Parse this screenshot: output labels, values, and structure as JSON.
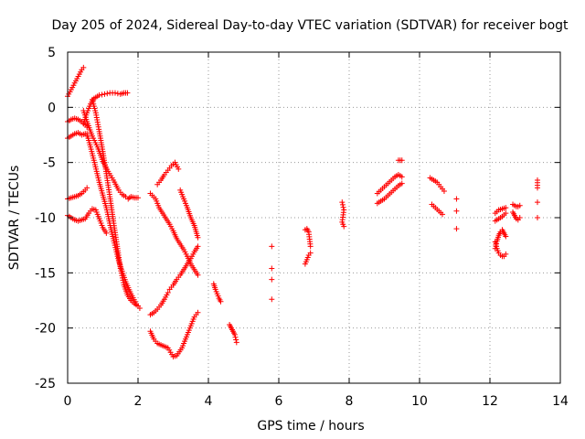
{
  "chart_data": {
    "type": "scatter",
    "title": "Day 205 of 2024, Sidereal Day-to-day VTEC variation (SDTVAR) for receiver bogt",
    "xlabel": "GPS time / hours",
    "ylabel": "SDTVAR / TECUs",
    "xlim": [
      0,
      14
    ],
    "ylim": [
      -25,
      5
    ],
    "xticks": [
      0,
      2,
      4,
      6,
      8,
      10,
      12,
      14
    ],
    "yticks": [
      -25,
      -20,
      -15,
      -10,
      -5,
      0,
      5
    ],
    "xtick_labels": [
      "0",
      "2",
      "4",
      "6",
      "8",
      "10",
      "12",
      "14"
    ],
    "ytick_labels": [
      "-25",
      "-20",
      "-15",
      "-10",
      "-5",
      "0",
      "5"
    ],
    "grid": true,
    "marker": "+",
    "color": "#ff0000",
    "series": [
      {
        "segments": [
          {
            "x": [
              0.0,
              0.1,
              0.2,
              0.3,
              0.4,
              0.45
            ],
            "y": [
              1.0,
              1.6,
              2.2,
              2.8,
              3.4,
              3.6
            ]
          },
          {
            "x": [
              0.45,
              0.55,
              0.7,
              0.85,
              1.0,
              1.15,
              1.3,
              1.45,
              1.55,
              1.65,
              1.72,
              1.8,
              1.9,
              2.0
            ],
            "y": [
              -0.3,
              -1.3,
              -2.6,
              -3.6,
              -4.9,
              -5.8,
              -6.6,
              -7.5,
              -7.9,
              -8.1,
              -8.3,
              -8.1,
              -8.2,
              -8.2
            ]
          },
          {
            "x": [
              0.0,
              0.1,
              0.2,
              0.3,
              0.4,
              0.5,
              0.55
            ],
            "y": [
              -2.8,
              -2.6,
              -2.4,
              -2.3,
              -2.5,
              -2.4,
              -2.6
            ]
          },
          {
            "x": [
              0.55,
              0.7,
              0.9,
              1.1,
              1.25,
              1.45,
              1.65,
              1.8,
              1.95,
              2.05
            ],
            "y": [
              -2.4,
              -4.2,
              -6.8,
              -9.1,
              -11.3,
              -13.9,
              -15.8,
              -16.9,
              -17.8,
              -18.2
            ]
          }
        ]
      },
      {
        "segments": [
          {
            "x": [
              0.45,
              0.55,
              0.65,
              0.75,
              0.9,
              1.05,
              1.2,
              1.35,
              1.5,
              1.6,
              1.7
            ],
            "y": [
              -1.5,
              -0.5,
              0.3,
              0.8,
              1.1,
              1.2,
              1.3,
              1.3,
              1.2,
              1.3,
              1.3
            ]
          },
          {
            "x": [
              0.0,
              0.1,
              0.2,
              0.3,
              0.4,
              0.5,
              0.55
            ],
            "y": [
              -1.3,
              -1.1,
              -1.0,
              -1.1,
              -1.3,
              -1.6,
              -1.8
            ]
          },
          {
            "x": [
              0.7,
              0.8,
              0.9,
              1.0,
              1.1,
              1.2,
              1.3,
              1.4,
              1.5,
              1.6,
              1.7,
              1.8,
              1.9,
              2.0
            ],
            "y": [
              0.7,
              -0.5,
              -2.2,
              -4.0,
              -6.0,
              -8.1,
              -10.3,
              -12.4,
              -14.6,
              -16.1,
              -17.0,
              -17.5,
              -17.8,
              -18.0
            ]
          }
        ]
      },
      {
        "segments": [
          {
            "x": [
              0.0,
              0.1,
              0.2,
              0.3,
              0.4,
              0.5,
              0.55
            ],
            "y": [
              -8.3,
              -8.2,
              -8.1,
              -8.0,
              -7.8,
              -7.5,
              -7.3
            ]
          },
          {
            "x": [
              0.0,
              0.1,
              0.2,
              0.3,
              0.4,
              0.5,
              0.6,
              0.7,
              0.8,
              0.9,
              1.0,
              1.1
            ],
            "y": [
              -9.8,
              -10.0,
              -10.2,
              -10.3,
              -10.2,
              -10.1,
              -9.6,
              -9.2,
              -9.3,
              -10.1,
              -10.9,
              -11.4
            ]
          }
        ]
      },
      {
        "segments": [
          {
            "x": [
              2.35,
              2.5,
              2.6,
              2.7,
              2.8,
              2.9,
              3.0,
              3.1,
              3.2,
              3.3,
              3.4,
              3.5,
              3.6,
              3.7
            ],
            "y": [
              -7.8,
              -8.3,
              -9.1,
              -9.6,
              -10.1,
              -10.6,
              -11.2,
              -11.9,
              -12.4,
              -12.9,
              -13.5,
              -14.2,
              -14.7,
              -15.2
            ]
          },
          {
            "x": [
              2.35,
              2.45,
              2.55,
              2.65,
              2.75,
              2.85
            ],
            "y": [
              -18.8,
              -18.6,
              -18.3,
              -17.9,
              -17.4,
              -16.8
            ]
          },
          {
            "x": [
              2.35,
              2.45,
              2.55,
              2.7,
              2.85,
              3.0,
              3.1,
              3.25,
              3.4,
              3.5,
              3.6,
              3.7
            ],
            "y": [
              -20.3,
              -21.0,
              -21.4,
              -21.6,
              -21.8,
              -22.6,
              -22.5,
              -21.8,
              -20.6,
              -19.8,
              -19.0,
              -18.6
            ]
          }
        ]
      },
      {
        "segments": [
          {
            "x": [
              2.55,
              2.65,
              2.75,
              2.85,
              2.95,
              3.05,
              3.15
            ],
            "y": [
              -7.0,
              -6.6,
              -6.1,
              -5.7,
              -5.3,
              -5.0,
              -5.6
            ]
          },
          {
            "x": [
              2.9,
              3.0,
              3.1,
              3.2,
              3.3,
              3.4,
              3.5,
              3.6,
              3.7
            ],
            "y": [
              -16.5,
              -16.1,
              -15.6,
              -15.2,
              -14.7,
              -14.2,
              -13.7,
              -13.1,
              -12.6
            ]
          },
          {
            "x": [
              3.2,
              3.3,
              3.4,
              3.5,
              3.6,
              3.7
            ],
            "y": [
              -7.5,
              -8.3,
              -9.1,
              -10.0,
              -10.7,
              -11.8
            ]
          }
        ]
      },
      {
        "segments": [
          {
            "x": [
              4.15,
              4.2,
              4.25,
              4.3,
              4.35
            ],
            "y": [
              -16.0,
              -16.5,
              -16.9,
              -17.3,
              -17.6
            ]
          },
          {
            "x": [
              4.6,
              4.65,
              4.7,
              4.75,
              4.8
            ],
            "y": [
              -19.7,
              -20.0,
              -20.3,
              -20.6,
              -21.3
            ]
          },
          {
            "x": [
              5.8,
              5.8,
              5.8,
              5.8
            ],
            "y": [
              -12.6,
              -14.6,
              -15.6,
              -17.4
            ]
          },
          {
            "x": [
              6.75,
              6.8,
              6.85,
              6.9
            ],
            "y": [
              -11.1,
              -11.0,
              -11.3,
              -12.6
            ]
          },
          {
            "x": [
              6.75,
              6.8,
              6.85,
              6.9
            ],
            "y": [
              -14.2,
              -13.8,
              -13.4,
              -13.2
            ]
          },
          {
            "x": [
              7.8,
              7.85,
              7.8,
              7.85
            ],
            "y": [
              -8.6,
              -9.3,
              -10.4,
              -10.8
            ]
          }
        ]
      },
      {
        "segments": [
          {
            "x": [
              8.8,
              8.9,
              9.0,
              9.1,
              9.2,
              9.3,
              9.4,
              9.5
            ],
            "y": [
              -7.8,
              -7.5,
              -7.2,
              -6.9,
              -6.6,
              -6.3,
              -6.1,
              -6.3
            ]
          },
          {
            "x": [
              8.8,
              8.9,
              9.0,
              9.1,
              9.2,
              9.3,
              9.4,
              9.5
            ],
            "y": [
              -8.7,
              -8.5,
              -8.3,
              -8.0,
              -7.7,
              -7.4,
              -7.1,
              -6.9
            ]
          },
          {
            "x": [
              9.4,
              9.45,
              9.5
            ],
            "y": [
              -4.8,
              -4.8,
              -4.8
            ]
          },
          {
            "x": [
              10.3,
              10.4,
              10.5,
              10.6,
              10.7
            ],
            "y": [
              -6.4,
              -6.6,
              -6.8,
              -7.2,
              -7.6
            ]
          },
          {
            "x": [
              10.35,
              10.45,
              10.55,
              10.65
            ],
            "y": [
              -8.8,
              -9.1,
              -9.4,
              -9.7
            ]
          },
          {
            "x": [
              11.05,
              11.05,
              11.05
            ],
            "y": [
              -8.3,
              -9.4,
              -11.0
            ]
          }
        ]
      },
      {
        "segments": [
          {
            "x": [
              12.15,
              12.25,
              12.35,
              12.45
            ],
            "y": [
              -9.6,
              -9.3,
              -9.2,
              -9.1
            ]
          },
          {
            "x": [
              12.15,
              12.25,
              12.35,
              12.45
            ],
            "y": [
              -10.3,
              -10.1,
              -9.9,
              -9.6
            ]
          },
          {
            "x": [
              12.15,
              12.2,
              12.25,
              12.3,
              12.35,
              12.4,
              12.45
            ],
            "y": [
              -12.8,
              -12.1,
              -11.6,
              -11.3,
              -11.1,
              -11.4,
              -11.7
            ]
          },
          {
            "x": [
              12.15,
              12.2,
              12.25,
              12.3,
              12.35,
              12.4,
              12.45
            ],
            "y": [
              -12.2,
              -12.8,
              -13.2,
              -13.4,
              -13.5,
              -13.5,
              -13.3
            ]
          },
          {
            "x": [
              12.65,
              12.7,
              12.75,
              12.8,
              12.85
            ],
            "y": [
              -8.8,
              -8.9,
              -9.0,
              -9.0,
              -8.9
            ]
          },
          {
            "x": [
              12.65,
              12.7,
              12.75,
              12.8,
              12.85
            ],
            "y": [
              -9.5,
              -9.8,
              -10.1,
              -10.2,
              -10.0
            ]
          },
          {
            "x": [
              13.35,
              13.35,
              13.35,
              13.35
            ],
            "y": [
              -6.6,
              -7.3,
              -8.6,
              -10.0
            ]
          }
        ]
      }
    ]
  }
}
